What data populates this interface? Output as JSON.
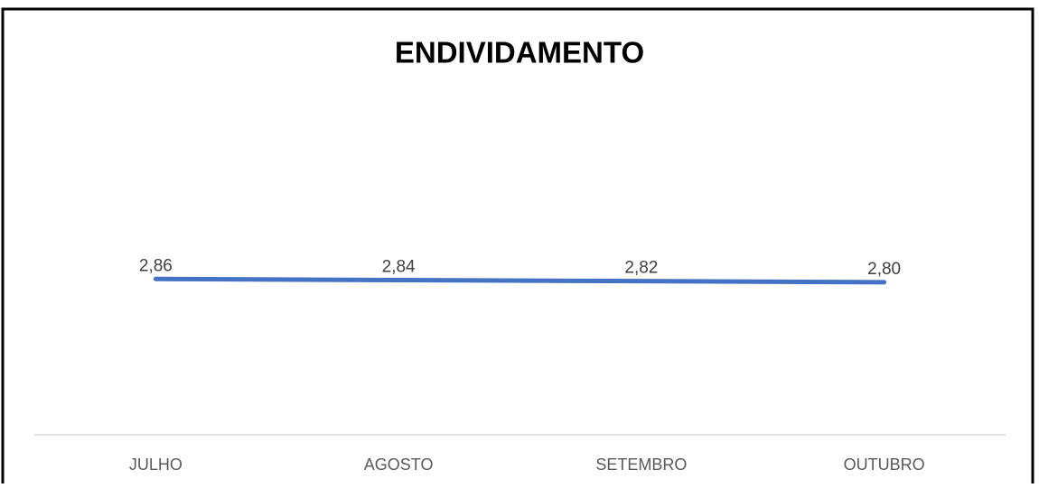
{
  "chart_data": {
    "type": "line",
    "title": "ENDIVIDAMENTO",
    "categories": [
      "JULHO",
      "AGOSTO",
      "SETEMBRO",
      "OUTUBRO"
    ],
    "series": [
      {
        "name": "ENDIVIDAMENTO",
        "color": "#4472c4",
        "values": [
          2.86,
          2.84,
          2.82,
          2.8
        ],
        "value_labels": [
          "2,86",
          "2,84",
          "2,82",
          "2,80"
        ]
      }
    ],
    "ylim": [
      0,
      5
    ]
  }
}
